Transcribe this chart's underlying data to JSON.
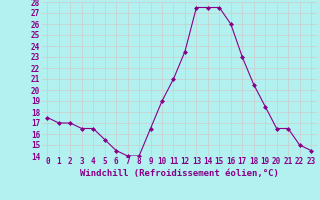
{
  "x": [
    0,
    1,
    2,
    3,
    4,
    5,
    6,
    7,
    8,
    9,
    10,
    11,
    12,
    13,
    14,
    15,
    16,
    17,
    18,
    19,
    20,
    21,
    22,
    23
  ],
  "y": [
    17.5,
    17.0,
    17.0,
    16.5,
    16.5,
    15.5,
    14.5,
    14.0,
    14.0,
    16.5,
    19.0,
    21.0,
    23.5,
    27.5,
    27.5,
    27.5,
    26.0,
    23.0,
    20.5,
    18.5,
    16.5,
    16.5,
    15.0,
    14.5
  ],
  "xlabel": "Windchill (Refroidissement éolien,°C)",
  "ylim": [
    14,
    28
  ],
  "yticks": [
    14,
    15,
    16,
    17,
    18,
    19,
    20,
    21,
    22,
    23,
    24,
    25,
    26,
    27,
    28
  ],
  "xticks": [
    0,
    1,
    2,
    3,
    4,
    5,
    6,
    7,
    8,
    9,
    10,
    11,
    12,
    13,
    14,
    15,
    16,
    17,
    18,
    19,
    20,
    21,
    22,
    23
  ],
  "line_color": "#880088",
  "marker_color": "#880088",
  "bg_color": "#b3f0f0",
  "grid_color": "#cccccc",
  "text_color": "#880088"
}
